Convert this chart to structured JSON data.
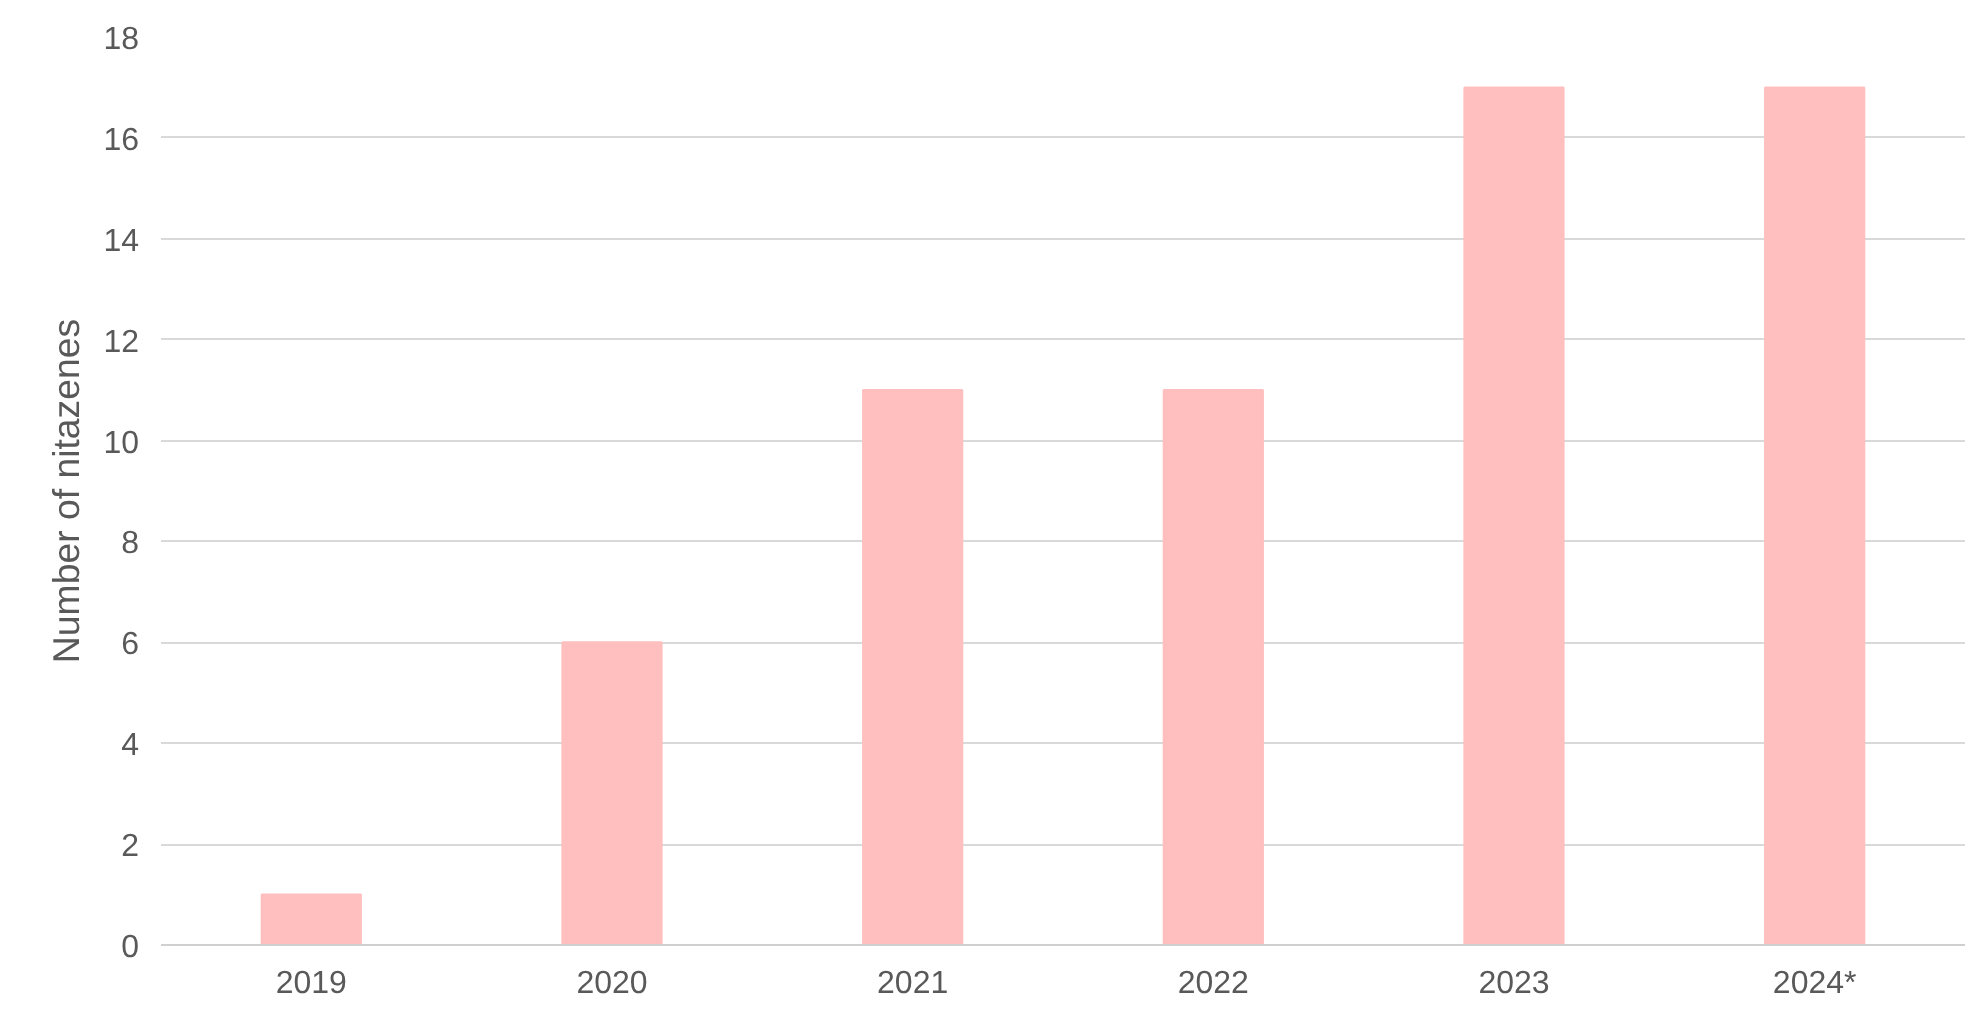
{
  "chart_data": {
    "type": "bar",
    "ylabel": "Number of nitazenes",
    "categories": [
      "2019",
      "2020",
      "2021",
      "2022",
      "2023",
      "2024*"
    ],
    "values": [
      1,
      6,
      11,
      11,
      17,
      17
    ],
    "color": "#ffbfbf",
    "ylim": [
      0,
      18
    ],
    "yticks": [
      0,
      2,
      4,
      6,
      8,
      10,
      12,
      14,
      16,
      18
    ],
    "grid": "y"
  }
}
